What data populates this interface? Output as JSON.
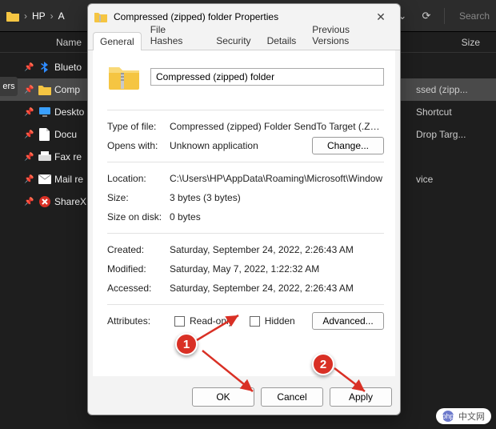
{
  "explorer": {
    "breadcrumb": {
      "seg1": "HP",
      "seg2": "A"
    },
    "search_placeholder": "Search",
    "columns": {
      "name": "Name",
      "size": "Size"
    },
    "sidebar_tab": "ers",
    "rows": [
      {
        "icon": "bluetooth",
        "label": "Blueto",
        "right": "",
        "sel": false
      },
      {
        "icon": "folder",
        "label": "Comp",
        "right": "ssed (zipp...",
        "sel": true
      },
      {
        "icon": "desktop",
        "label": "Deskto",
        "right": "Shortcut",
        "sel": false
      },
      {
        "icon": "doc",
        "label": "Docu",
        "right": "Drop Targ...",
        "sel": false
      },
      {
        "icon": "fax",
        "label": "Fax re",
        "right": "",
        "sel": false
      },
      {
        "icon": "mail",
        "label": "Mail re",
        "right": "vice",
        "sel": false
      },
      {
        "icon": "sharex",
        "label": "ShareX",
        "right": "",
        "sel": false
      }
    ]
  },
  "dialog": {
    "title": "Compressed (zipped) folder Properties",
    "tabs": [
      "General",
      "File Hashes",
      "Security",
      "Details",
      "Previous Versions"
    ],
    "active_tab": 0,
    "name_value": "Compressed (zipped) folder",
    "fields": {
      "type_of_file_label": "Type of file:",
      "type_of_file": "Compressed (zipped) Folder SendTo Target (.ZFSen",
      "opens_with_label": "Opens with:",
      "opens_with": "Unknown application",
      "change_btn": "Change...",
      "location_label": "Location:",
      "location": "C:\\Users\\HP\\AppData\\Roaming\\Microsoft\\Window",
      "size_label": "Size:",
      "size": "3 bytes (3 bytes)",
      "size_on_disk_label": "Size on disk:",
      "size_on_disk": "0 bytes",
      "created_label": "Created:",
      "created": "Saturday, September 24, 2022, 2:26:43 AM",
      "modified_label": "Modified:",
      "modified": "Saturday, May 7, 2022, 1:22:32 AM",
      "accessed_label": "Accessed:",
      "accessed": "Saturday, September 24, 2022, 2:26:43 AM",
      "attributes_label": "Attributes:",
      "readonly_label": "Read-only",
      "hidden_label": "Hidden",
      "advanced_btn": "Advanced..."
    },
    "buttons": {
      "ok": "OK",
      "cancel": "Cancel",
      "apply": "Apply"
    }
  },
  "annotations": {
    "marker1": "1",
    "marker2": "2",
    "arrow_color": "#d93025"
  },
  "watermark": {
    "text": "中文网",
    "prefix": "php"
  },
  "colors": {
    "explorer_bg": "#1e1e1e",
    "dialog_bg": "#f3f3f3",
    "panel_bg": "#ffffff",
    "accent_folder": "#f5c542"
  }
}
